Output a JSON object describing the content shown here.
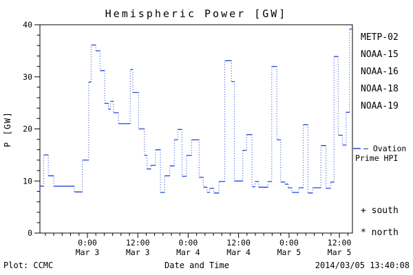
{
  "footer": {
    "plot_credit": "Plot: CCMC",
    "timestamp": "2014/03/05 13:40:08"
  },
  "legend": {
    "satellites": [
      {
        "label": "METP-02",
        "color": "#000000"
      },
      {
        "label": "NOAA-15",
        "color": "#2244dd"
      },
      {
        "label": "NOAA-16",
        "color": "#44bbee"
      },
      {
        "label": "NOAA-18",
        "color": "#66dd88"
      },
      {
        "label": "NOAA-19",
        "color": "#ffaa33"
      }
    ],
    "model_line1": "– Ovation",
    "model_line2": "Prime HPI",
    "model_color": "#2244dd",
    "south_marker": "+ south",
    "north_marker": "* north"
  },
  "chart_data": {
    "type": "line",
    "line_style": "step-histogram, solid horizontals with dotted vertical connectors",
    "title": "Hemispheric Power [GW]",
    "xlabel": "Date and Time",
    "ylabel": "P [GW]",
    "ylim": [
      0,
      40
    ],
    "y_major_ticks": [
      0,
      10,
      20,
      30,
      40
    ],
    "y_minor_step": 2,
    "x_hours_range": [
      -11.3,
      63.1
    ],
    "x_minor_step_hours": 2,
    "x_major_ticks": [
      {
        "hour": 0,
        "time": "0:00",
        "date": "Mar 3"
      },
      {
        "hour": 12,
        "time": "12:00",
        "date": "Mar 3"
      },
      {
        "hour": 24,
        "time": "0:00",
        "date": "Mar 4"
      },
      {
        "hour": 36,
        "time": "12:00",
        "date": "Mar 4"
      },
      {
        "hour": 48,
        "time": "0:00",
        "date": "Mar 5"
      },
      {
        "hour": 60,
        "time": "12:00",
        "date": "Mar 5"
      }
    ],
    "grid": false,
    "legend_position": "right-outside",
    "series": [
      {
        "name": "Ovation Prime HPI",
        "color": "#2244dd",
        "steps_hour_gw": [
          [
            -11.3,
            9
          ],
          [
            -10.4,
            15
          ],
          [
            -9.3,
            11
          ],
          [
            -8,
            9
          ],
          [
            -3.1,
            7.9
          ],
          [
            -1.2,
            14
          ],
          [
            0.3,
            29
          ],
          [
            0.9,
            36.1
          ],
          [
            2,
            35
          ],
          [
            3,
            31.2
          ],
          [
            4.1,
            24.9
          ],
          [
            5,
            23.8
          ],
          [
            5.5,
            25.3
          ],
          [
            6.2,
            23.1
          ],
          [
            7.4,
            21
          ],
          [
            10.2,
            31.4
          ],
          [
            10.8,
            27
          ],
          [
            12.2,
            20
          ],
          [
            13.6,
            14.9
          ],
          [
            14.2,
            12.3
          ],
          [
            15.1,
            13
          ],
          [
            16.2,
            16
          ],
          [
            17.4,
            7.8
          ],
          [
            18.4,
            11
          ],
          [
            19.6,
            12.9
          ],
          [
            20.7,
            17.9
          ],
          [
            21.5,
            19.9
          ],
          [
            22.5,
            10.9
          ],
          [
            23.6,
            14.9
          ],
          [
            24.8,
            17.9
          ],
          [
            26.6,
            10.7
          ],
          [
            27.6,
            8.8
          ],
          [
            28.5,
            7.8
          ],
          [
            29.1,
            8.6
          ],
          [
            30.1,
            7.7
          ],
          [
            31.3,
            9.9
          ],
          [
            32.7,
            33.1
          ],
          [
            34.3,
            29.1
          ],
          [
            35,
            10
          ],
          [
            37,
            15.9
          ],
          [
            37.9,
            18.9
          ],
          [
            39.2,
            8.9
          ],
          [
            39.9,
            9.9
          ],
          [
            40.8,
            8.8
          ],
          [
            43,
            9.9
          ],
          [
            43.9,
            32
          ],
          [
            45.1,
            17.9
          ],
          [
            46,
            9.8
          ],
          [
            47,
            9.4
          ],
          [
            47.8,
            8.7
          ],
          [
            48.7,
            7.8
          ],
          [
            50.3,
            8.7
          ],
          [
            51.4,
            20.8
          ],
          [
            52.5,
            7.7
          ],
          [
            53.6,
            8.7
          ],
          [
            55.6,
            16.8
          ],
          [
            56.8,
            8.6
          ],
          [
            57.9,
            9.8
          ],
          [
            58.7,
            33.9
          ],
          [
            59.7,
            18.8
          ],
          [
            60.7,
            16.9
          ],
          [
            61.6,
            23.2
          ],
          [
            62.4,
            39.2
          ],
          [
            63,
            39.2
          ]
        ]
      }
    ]
  }
}
